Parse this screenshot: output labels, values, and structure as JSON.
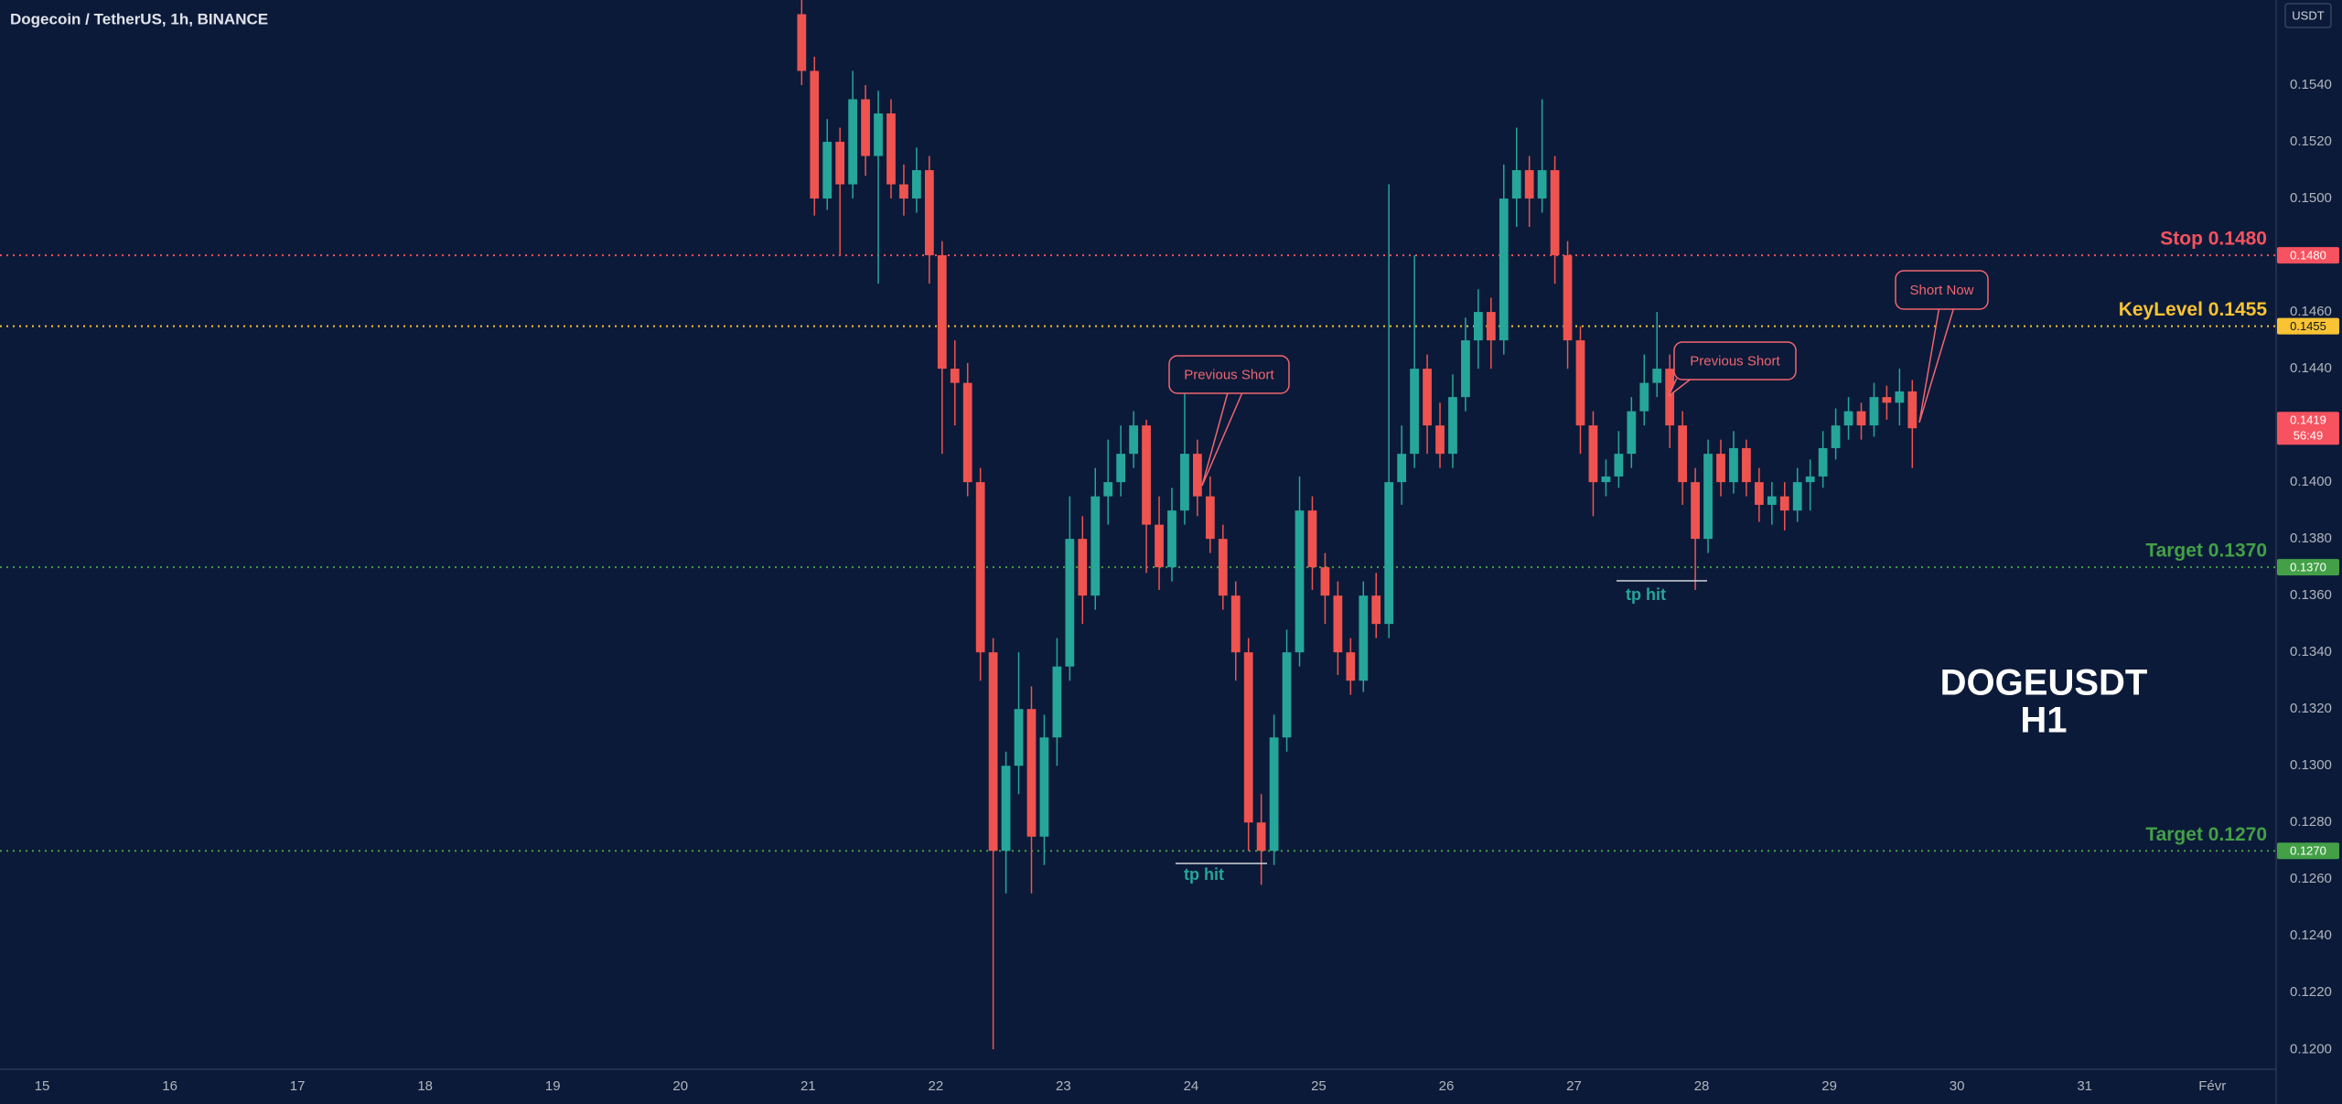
{
  "chart_data": {
    "type": "candlestick",
    "title": "Dogecoin / TetherUS, 1h, BINANCE",
    "y_unit": "USDT",
    "colors": {
      "up": "#26a69a",
      "down": "#ef5350"
    },
    "x": [
      20.95,
      21.05,
      21.15,
      21.25,
      21.35,
      21.45,
      21.55,
      21.65,
      21.75,
      21.85,
      21.95,
      22.05,
      22.15,
      22.25,
      22.35,
      22.45,
      22.55,
      22.65,
      22.75,
      22.85,
      22.95,
      23.05,
      23.15,
      23.25,
      23.35,
      23.45,
      23.55,
      23.65,
      23.75,
      23.85,
      23.95,
      24.05,
      24.15,
      24.25,
      24.35,
      24.45,
      24.55,
      24.65,
      24.75,
      24.85,
      24.95,
      25.05,
      25.15,
      25.25,
      25.35,
      25.45,
      25.55,
      25.65,
      25.75,
      25.85,
      25.95,
      26.05,
      26.15,
      26.25,
      26.35,
      26.45,
      26.55,
      26.65,
      26.75,
      26.85,
      26.95,
      27.05,
      27.15,
      27.25,
      27.35,
      27.45,
      27.55,
      27.65,
      27.75,
      27.85,
      27.95,
      28.05,
      28.15,
      28.25,
      28.35,
      28.45,
      28.55,
      28.65,
      28.75,
      28.85,
      28.95,
      29.05,
      29.15,
      29.25,
      29.35,
      29.45,
      29.55,
      29.65
    ],
    "open": [
      0.1565,
      0.1545,
      0.15,
      0.152,
      0.1505,
      0.1535,
      0.1515,
      0.153,
      0.1505,
      0.15,
      0.151,
      0.148,
      0.144,
      0.1435,
      0.14,
      0.134,
      0.127,
      0.13,
      0.132,
      0.1275,
      0.131,
      0.1335,
      0.138,
      0.136,
      0.1395,
      0.14,
      0.141,
      0.142,
      0.1385,
      0.137,
      0.139,
      0.141,
      0.1395,
      0.138,
      0.136,
      0.134,
      0.128,
      0.127,
      0.131,
      0.134,
      0.139,
      0.137,
      0.136,
      0.134,
      0.133,
      0.136,
      0.135,
      0.14,
      0.141,
      0.144,
      0.142,
      0.141,
      0.143,
      0.145,
      0.146,
      0.145,
      0.15,
      0.151,
      0.15,
      0.151,
      0.148,
      0.145,
      0.142,
      0.14,
      0.1402,
      0.141,
      0.1425,
      0.1435,
      0.144,
      0.142,
      0.14,
      0.138,
      0.141,
      0.14,
      0.1412,
      0.14,
      0.1392,
      0.1395,
      0.139,
      0.14,
      0.1402,
      0.1412,
      0.142,
      0.1425,
      0.142,
      0.143,
      0.1428,
      0.1432
    ],
    "high": [
      0.157,
      0.155,
      0.1528,
      0.1525,
      0.1545,
      0.154,
      0.1538,
      0.1535,
      0.1512,
      0.1518,
      0.1515,
      0.1485,
      0.145,
      0.1442,
      0.1405,
      0.1345,
      0.1305,
      0.134,
      0.1328,
      0.1318,
      0.1345,
      0.1395,
      0.1388,
      0.1405,
      0.1415,
      0.142,
      0.1425,
      0.1422,
      0.1395,
      0.1398,
      0.1435,
      0.1415,
      0.1402,
      0.1385,
      0.1365,
      0.1345,
      0.129,
      0.1318,
      0.1348,
      0.1402,
      0.1395,
      0.1375,
      0.1365,
      0.1345,
      0.1365,
      0.1368,
      0.1505,
      0.142,
      0.148,
      0.1445,
      0.1428,
      0.1438,
      0.1458,
      0.1468,
      0.1465,
      0.1512,
      0.1525,
      0.1515,
      0.1535,
      0.1515,
      0.1485,
      0.1455,
      0.1425,
      0.1408,
      0.1418,
      0.143,
      0.1445,
      0.146,
      0.1445,
      0.1425,
      0.1405,
      0.1415,
      0.1415,
      0.1418,
      0.1415,
      0.1405,
      0.14,
      0.14,
      0.1405,
      0.1408,
      0.1418,
      0.1426,
      0.143,
      0.1428,
      0.1435,
      0.1434,
      0.144,
      0.1436
    ],
    "low": [
      0.154,
      0.1494,
      0.1496,
      0.148,
      0.15,
      0.1508,
      0.147,
      0.15,
      0.1494,
      0.1495,
      0.147,
      0.141,
      0.142,
      0.1395,
      0.133,
      0.12,
      0.1255,
      0.129,
      0.1255,
      0.1265,
      0.13,
      0.133,
      0.135,
      0.1355,
      0.1385,
      0.1395,
      0.1405,
      0.1368,
      0.1362,
      0.1365,
      0.1385,
      0.1388,
      0.1375,
      0.1355,
      0.133,
      0.127,
      0.1258,
      0.1265,
      0.1305,
      0.1335,
      0.1362,
      0.135,
      0.1332,
      0.1325,
      0.1326,
      0.1345,
      0.1345,
      0.1392,
      0.1405,
      0.141,
      0.1405,
      0.1405,
      0.1425,
      0.144,
      0.144,
      0.1445,
      0.149,
      0.149,
      0.1495,
      0.147,
      0.144,
      0.141,
      0.1388,
      0.1395,
      0.1398,
      0.1405,
      0.142,
      0.143,
      0.1412,
      0.1392,
      0.1362,
      0.1375,
      0.1395,
      0.1396,
      0.1395,
      0.1386,
      0.1385,
      0.1383,
      0.1386,
      0.139,
      0.1398,
      0.1408,
      0.1415,
      0.1415,
      0.1416,
      0.1422,
      0.142,
      0.1405
    ],
    "close": [
      0.1545,
      0.15,
      0.152,
      0.1505,
      0.1535,
      0.1515,
      0.153,
      0.1505,
      0.15,
      0.151,
      0.148,
      0.144,
      0.1435,
      0.14,
      0.134,
      0.127,
      0.13,
      0.132,
      0.1275,
      0.131,
      0.1335,
      0.138,
      0.136,
      0.1395,
      0.14,
      0.141,
      0.142,
      0.1385,
      0.137,
      0.139,
      0.141,
      0.1395,
      0.138,
      0.136,
      0.134,
      0.128,
      0.127,
      0.131,
      0.134,
      0.139,
      0.137,
      0.136,
      0.134,
      0.133,
      0.136,
      0.135,
      0.14,
      0.141,
      0.144,
      0.142,
      0.141,
      0.143,
      0.145,
      0.146,
      0.145,
      0.15,
      0.151,
      0.15,
      0.151,
      0.148,
      0.145,
      0.142,
      0.14,
      0.1402,
      0.141,
      0.1425,
      0.1435,
      0.144,
      0.142,
      0.14,
      0.138,
      0.141,
      0.14,
      0.1412,
      0.14,
      0.1392,
      0.1395,
      0.139,
      0.14,
      0.1402,
      0.1412,
      0.142,
      0.1425,
      0.142,
      0.143,
      0.1428,
      0.1432,
      0.1419
    ],
    "xlim": [
      14.67,
      32.5
    ],
    "ylim": [
      0.1193,
      0.157
    ],
    "xticks": [
      15,
      16,
      17,
      18,
      19,
      20,
      21,
      22,
      23,
      24,
      25,
      26,
      27,
      28,
      29,
      30,
      31,
      {
        "value": 32,
        "label": "Févr"
      }
    ],
    "yticks": [
      {
        "value": 0.12,
        "label": "0.1200"
      },
      {
        "value": 0.122,
        "label": "0.1220"
      },
      {
        "value": 0.124,
        "label": "0.1240"
      },
      {
        "value": 0.126,
        "label": "0.1260"
      },
      {
        "value": 0.128,
        "label": "0.1280"
      },
      {
        "value": 0.13,
        "label": "0.1300"
      },
      {
        "value": 0.132,
        "label": "0.1320"
      },
      {
        "value": 0.134,
        "label": "0.1340"
      },
      {
        "value": 0.136,
        "label": "0.1360"
      },
      {
        "value": 0.138,
        "label": "0.1380"
      },
      {
        "value": 0.14,
        "label": "0.1400"
      },
      {
        "value": 0.142,
        "label": "0.1420"
      },
      {
        "value": 0.144,
        "label": "0.1440"
      },
      {
        "value": 0.146,
        "label": "0.1460"
      },
      {
        "value": 0.148,
        "label": "0.1480"
      },
      {
        "value": 0.15,
        "label": "0.1500"
      },
      {
        "value": 0.152,
        "label": "0.1520"
      },
      {
        "value": 0.154,
        "label": "0.1540"
      }
    ],
    "levels": [
      {
        "name": "Stop 0.1480",
        "value": 0.148,
        "label": "0.1480",
        "color": "#f7525f"
      },
      {
        "name": "KeyLevel 0.1455",
        "value": 0.1455,
        "label": "0.1455",
        "color": "#f9c333"
      },
      {
        "name": "Target 0.1370",
        "value": 0.137,
        "label": "0.1370",
        "color": "#43a047"
      },
      {
        "name": "Target 0.1270",
        "value": 0.127,
        "label": "0.1270",
        "color": "#43a047"
      }
    ],
    "last_price": {
      "value": 0.1419,
      "label": "0.1419",
      "countdown": "56:49"
    },
    "callouts": [
      "Previous Short",
      "Previous Short",
      "Short Now"
    ],
    "markers": [
      "tp hit",
      "tp hit"
    ],
    "watermark": [
      "DOGEUSDT",
      "H1"
    ]
  }
}
